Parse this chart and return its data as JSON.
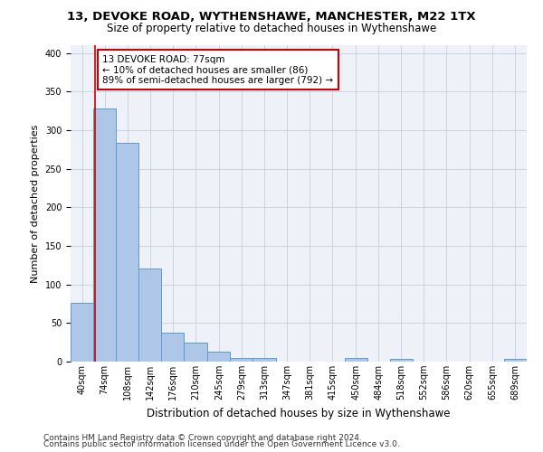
{
  "title1": "13, DEVOKE ROAD, WYTHENSHAWE, MANCHESTER, M22 1TX",
  "title2": "Size of property relative to detached houses in Wythenshawe",
  "xlabel": "Distribution of detached houses by size in Wythenshawe",
  "ylabel": "Number of detached properties",
  "footnote1": "Contains HM Land Registry data © Crown copyright and database right 2024.",
  "footnote2": "Contains public sector information licensed under the Open Government Licence v3.0.",
  "bar_edges": [
    40,
    74,
    108,
    142,
    176,
    210,
    245,
    279,
    313,
    347,
    381,
    415,
    450,
    484,
    518,
    552,
    586,
    620,
    655,
    689,
    723
  ],
  "bar_heights": [
    76,
    328,
    284,
    121,
    38,
    25,
    13,
    5,
    5,
    0,
    0,
    0,
    5,
    0,
    4,
    0,
    0,
    0,
    0,
    4
  ],
  "bar_color": "#aec6e8",
  "bar_edge_color": "#5b9bd5",
  "property_size": 77,
  "property_line_color": "#cc0000",
  "annotation_line1": "13 DEVOKE ROAD: 77sqm",
  "annotation_line2": "← 10% of detached houses are smaller (86)",
  "annotation_line3": "89% of semi-detached houses are larger (792) →",
  "annotation_box_color": "#ffffff",
  "annotation_box_edge": "#cc0000",
  "ylim": [
    0,
    410
  ],
  "bg_color": "#eef2f8",
  "grid_color": "#c0c8d8",
  "title1_fontsize": 9.5,
  "title2_fontsize": 8.5,
  "xlabel_fontsize": 8.5,
  "ylabel_fontsize": 8,
  "tick_fontsize": 7,
  "footnote_fontsize": 6.5,
  "annot_fontsize": 7.5
}
